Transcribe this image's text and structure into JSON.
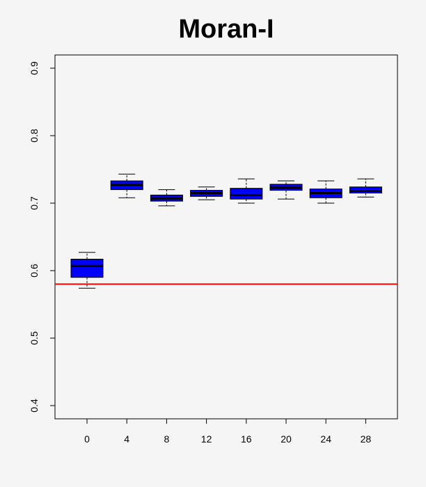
{
  "chart_data": {
    "type": "boxplot",
    "title": "Moran-I",
    "xlabel": "",
    "ylabel": "",
    "categories": [
      "0",
      "4",
      "8",
      "12",
      "16",
      "20",
      "24",
      "28"
    ],
    "ylim": [
      0.4,
      0.9
    ],
    "y_ticks": [
      "0.4",
      "0.5",
      "0.6",
      "0.7",
      "0.8",
      "0.9"
    ],
    "grid": false,
    "legend": "none",
    "box_color": "#0000ff",
    "reference_line": {
      "y": 0.58,
      "color": "#ff0000"
    },
    "boxes": [
      {
        "category": "0",
        "min": 0.574,
        "q1": 0.59,
        "median": 0.607,
        "q3": 0.617,
        "max": 0.627
      },
      {
        "category": "4",
        "min": 0.708,
        "q1": 0.72,
        "median": 0.727,
        "q3": 0.733,
        "max": 0.743
      },
      {
        "category": "8",
        "min": 0.696,
        "q1": 0.703,
        "median": 0.707,
        "q3": 0.712,
        "max": 0.72
      },
      {
        "category": "12",
        "min": 0.705,
        "q1": 0.71,
        "median": 0.715,
        "q3": 0.719,
        "max": 0.724
      },
      {
        "category": "16",
        "min": 0.7,
        "q1": 0.706,
        "median": 0.712,
        "q3": 0.722,
        "max": 0.736
      },
      {
        "category": "20",
        "min": 0.706,
        "q1": 0.719,
        "median": 0.723,
        "q3": 0.728,
        "max": 0.733
      },
      {
        "category": "24",
        "min": 0.7,
        "q1": 0.708,
        "median": 0.715,
        "q3": 0.721,
        "max": 0.733
      },
      {
        "category": "28",
        "min": 0.709,
        "q1": 0.715,
        "median": 0.718,
        "q3": 0.724,
        "max": 0.736
      }
    ]
  }
}
